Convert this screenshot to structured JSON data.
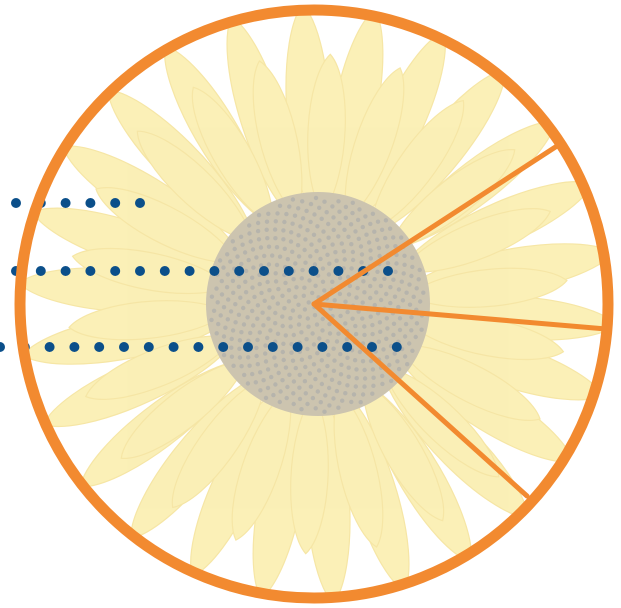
{
  "colors": {
    "ring": "#f28a30",
    "dots": "#0b4f8a",
    "petal_fill": "#f7e37c",
    "petal_edge": "#eed15c",
    "center_fill": "#a3946e",
    "center_floret": "#7c7769",
    "background": "#ffffff"
  },
  "image": {
    "subject": "sunflower",
    "opacity": 0.55
  },
  "rays": {
    "count": 3
  },
  "dotted_lines": [
    {
      "dot_count": 6
    },
    {
      "dot_count": 16
    },
    {
      "dot_count": 17
    }
  ]
}
